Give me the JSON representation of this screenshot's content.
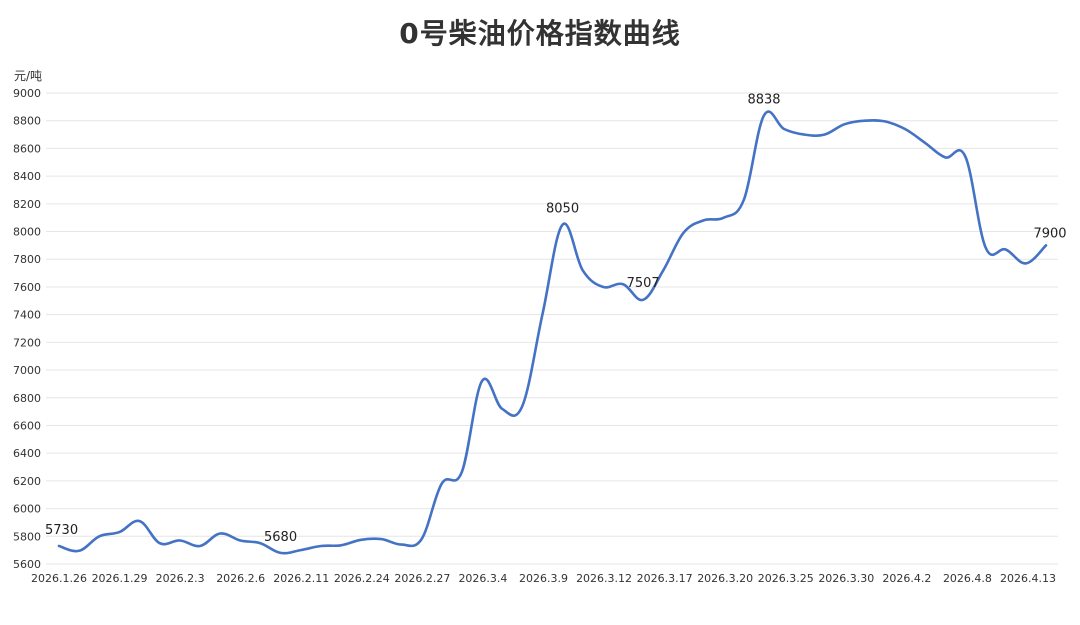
{
  "chart_data": {
    "type": "line",
    "title": "0号柴油价格指数曲线",
    "ylabel": "元/吨",
    "xlabel": "",
    "ylim": [
      5600,
      9000
    ],
    "yticks": [
      5600,
      5800,
      6000,
      6200,
      6400,
      6600,
      6800,
      7000,
      7200,
      7400,
      7600,
      7800,
      8000,
      8200,
      8400,
      8600,
      8800,
      9000
    ],
    "grid": true,
    "color": "#4472C4",
    "tick_labels": [
      "2026.1.26",
      "2026.1.29",
      "2026.2.3",
      "2026.2.6",
      "2026.2.11",
      "2026.2.24",
      "2026.2.27",
      "2026.3.4",
      "2026.3.9",
      "2026.3.12",
      "2026.3.17",
      "2026.3.20",
      "2026.3.25",
      "2026.3.30",
      "2026.4.2",
      "2026.4.8",
      "2026.4.13"
    ],
    "values": [
      5730,
      5695,
      5800,
      5830,
      5910,
      5750,
      5770,
      5730,
      5820,
      5770,
      5750,
      5680,
      5700,
      5730,
      5735,
      5775,
      5780,
      5740,
      5780,
      6180,
      6265,
      6920,
      6720,
      6740,
      7400,
      8050,
      7720,
      7600,
      7620,
      7507,
      7720,
      7990,
      8080,
      8100,
      8230,
      8838,
      8740,
      8700,
      8700,
      8775,
      8800,
      8795,
      8740,
      8640,
      8535,
      8540,
      7885,
      7870,
      7770,
      7900
    ],
    "annotations": [
      {
        "index": 0,
        "label": "5730"
      },
      {
        "index": 11,
        "label": "5680"
      },
      {
        "index": 25,
        "label": "8050"
      },
      {
        "index": 29,
        "label": "7507"
      },
      {
        "index": 35,
        "label": "8838"
      },
      {
        "index": 49,
        "label": "7900"
      }
    ]
  }
}
